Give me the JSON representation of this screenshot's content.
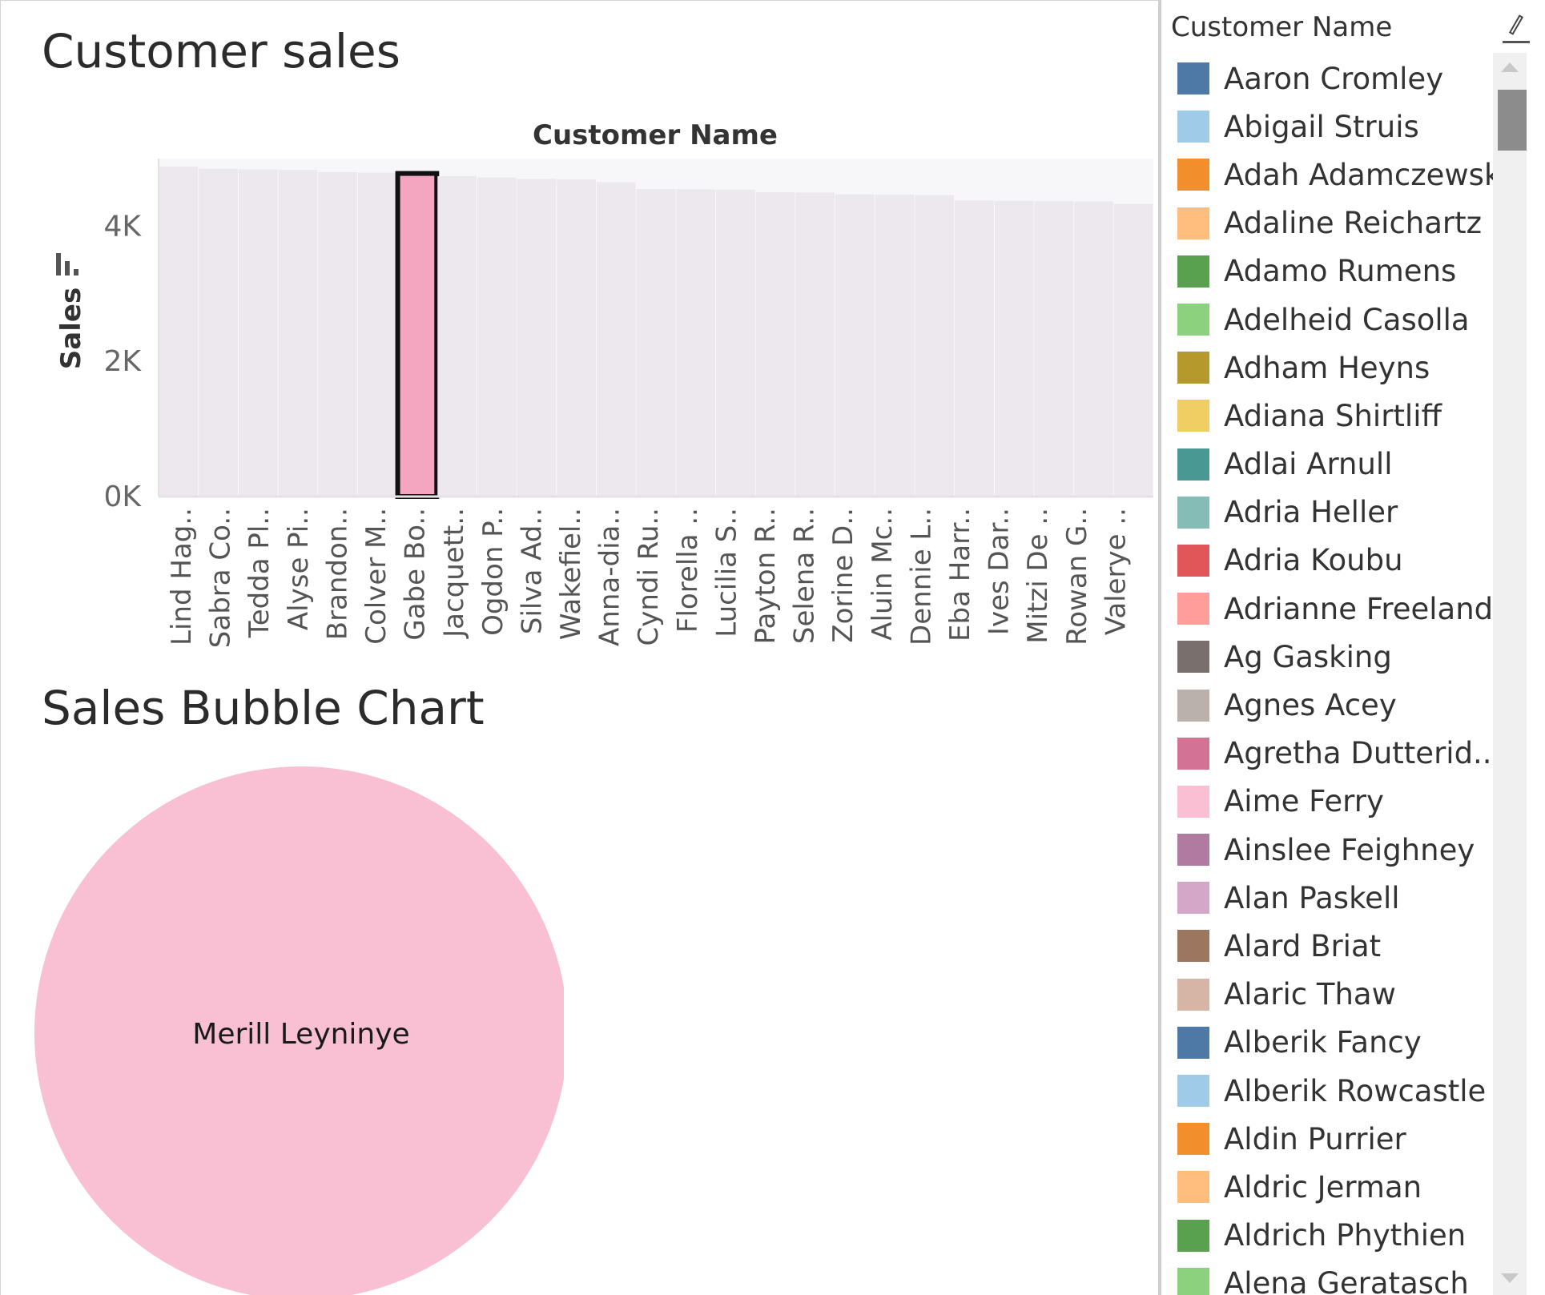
{
  "header": {
    "title": "Customer sales"
  },
  "bubble": {
    "title": "Sales Bubble Chart",
    "label": "Merill Leyninye",
    "color": "#f9bfd3"
  },
  "legend": {
    "title": "Customer Name",
    "edit_icon": "pencil-icon",
    "items": [
      {
        "label": "Aaron Cromley",
        "color": "#4e79a7"
      },
      {
        "label": "Abigail Struis",
        "color": "#a0cbe8"
      },
      {
        "label": "Adah Adamczewski",
        "color": "#f28e2b"
      },
      {
        "label": "Adaline Reichartz",
        "color": "#ffbe7d"
      },
      {
        "label": "Adamo Rumens",
        "color": "#59a14f"
      },
      {
        "label": "Adelheid Casolla",
        "color": "#8cd17d"
      },
      {
        "label": "Adham Heyns",
        "color": "#b6992d"
      },
      {
        "label": "Adiana Shirtliff",
        "color": "#f1ce63"
      },
      {
        "label": "Adlai Arnull",
        "color": "#499894"
      },
      {
        "label": "Adria Heller",
        "color": "#86bcb6"
      },
      {
        "label": "Adria Koubu",
        "color": "#e15759"
      },
      {
        "label": "Adrianne Freeland",
        "color": "#ff9d9a"
      },
      {
        "label": "Ag Gasking",
        "color": "#79706e"
      },
      {
        "label": "Agnes Acey",
        "color": "#bab0ac"
      },
      {
        "label": "Agretha Dutterid..",
        "color": "#d37295"
      },
      {
        "label": "Aime Ferry",
        "color": "#fabfd2"
      },
      {
        "label": "Ainslee Feighney",
        "color": "#b07aa1"
      },
      {
        "label": "Alan Paskell",
        "color": "#d4a6c8"
      },
      {
        "label": "Alard Briat",
        "color": "#9d7660"
      },
      {
        "label": "Alaric Thaw",
        "color": "#d7b5a6"
      },
      {
        "label": "Alberik Fancy",
        "color": "#4e79a7"
      },
      {
        "label": "Alberik Rowcastle",
        "color": "#a0cbe8"
      },
      {
        "label": "Aldin Purrier",
        "color": "#f28e2b"
      },
      {
        "label": "Aldric Jerman",
        "color": "#ffbe7d"
      },
      {
        "label": "Aldrich Phythien",
        "color": "#59a14f"
      },
      {
        "label": "Alena Geratasch",
        "color": "#8cd17d"
      }
    ]
  },
  "chart_data": {
    "type": "bar",
    "title": "Customer sales",
    "header": "Customer Name",
    "xlabel": "Customer Name",
    "ylabel": "Sales",
    "ylim": [
      0,
      5000
    ],
    "yticks": [
      "0K",
      "2K",
      "4K"
    ],
    "ytick_values": [
      0,
      2000,
      4000
    ],
    "sort_icon": "sort-descending-icon",
    "categories": [
      "Lind Hag..",
      "Sabra Co..",
      "Tedda Pl..",
      "Alyse Pi..",
      "Brandon..",
      "Colver M..",
      "Gabe Bo..",
      "Jacquett..",
      "Ogdon P..",
      "Silva Ad..",
      "Wakefiel..",
      "Anna-dia..",
      "Cyndi Ru..",
      "Florella ..",
      "Lucilia S..",
      "Payton R..",
      "Selena R..",
      "Zorine D..",
      "Aluin Mc..",
      "Dennie L..",
      "Eba Harr..",
      "Ives Dar..",
      "Mitzi De ..",
      "Rowan G..",
      "Valerye .."
    ],
    "values": [
      4880,
      4850,
      4840,
      4830,
      4800,
      4790,
      4780,
      4740,
      4720,
      4700,
      4690,
      4650,
      4550,
      4545,
      4540,
      4500,
      4495,
      4470,
      4465,
      4460,
      4380,
      4375,
      4370,
      4365,
      4330
    ],
    "highlighted_index": 6,
    "highlight_color": "#f4a6c0",
    "bar_color": "#ece8ee"
  }
}
